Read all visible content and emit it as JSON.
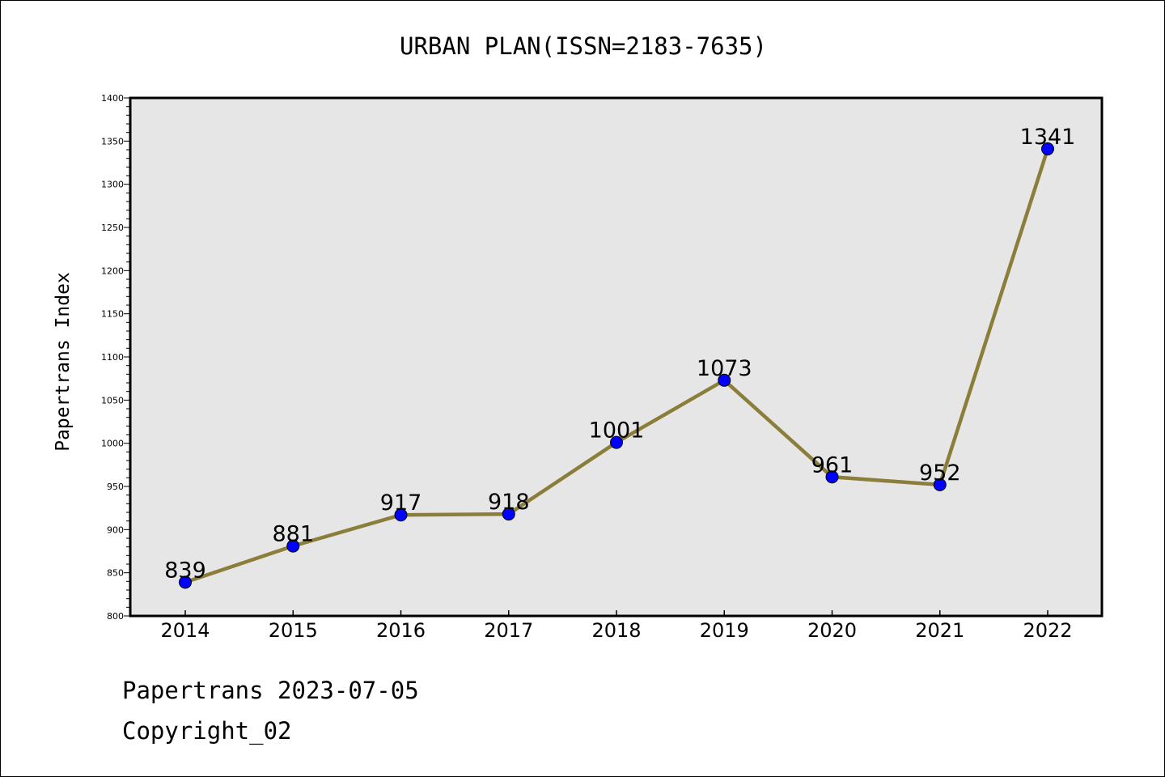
{
  "chart_data": {
    "type": "line",
    "title": "URBAN PLAN(ISSN=2183-7635)",
    "xlabel": "",
    "ylabel": "Papertrans Index",
    "categories": [
      "2014",
      "2015",
      "2016",
      "2017",
      "2018",
      "2019",
      "2020",
      "2021",
      "2022"
    ],
    "series": [
      {
        "values": [
          839,
          881,
          917,
          918,
          1001,
          1073,
          961,
          952,
          1341
        ]
      }
    ],
    "data_labels": [
      "839",
      "881",
      "917",
      "918",
      "1001",
      "1073",
      "961",
      "952",
      "1341"
    ],
    "ylim": [
      800,
      1400
    ],
    "y_ticks": [
      "800",
      "850",
      "900",
      "950",
      "1000",
      "1050",
      "1100",
      "1150",
      "1200",
      "1250",
      "1300",
      "1350",
      "1400"
    ],
    "grid": false,
    "legend": "none",
    "colors": {
      "line": "#8b7d3a",
      "marker": "#0000ff",
      "plot_background": "#e6e6e6",
      "axes": "#000000"
    }
  },
  "footer": {
    "line1": "Papertrans 2023-07-05",
    "line2": "Copyright_02"
  }
}
